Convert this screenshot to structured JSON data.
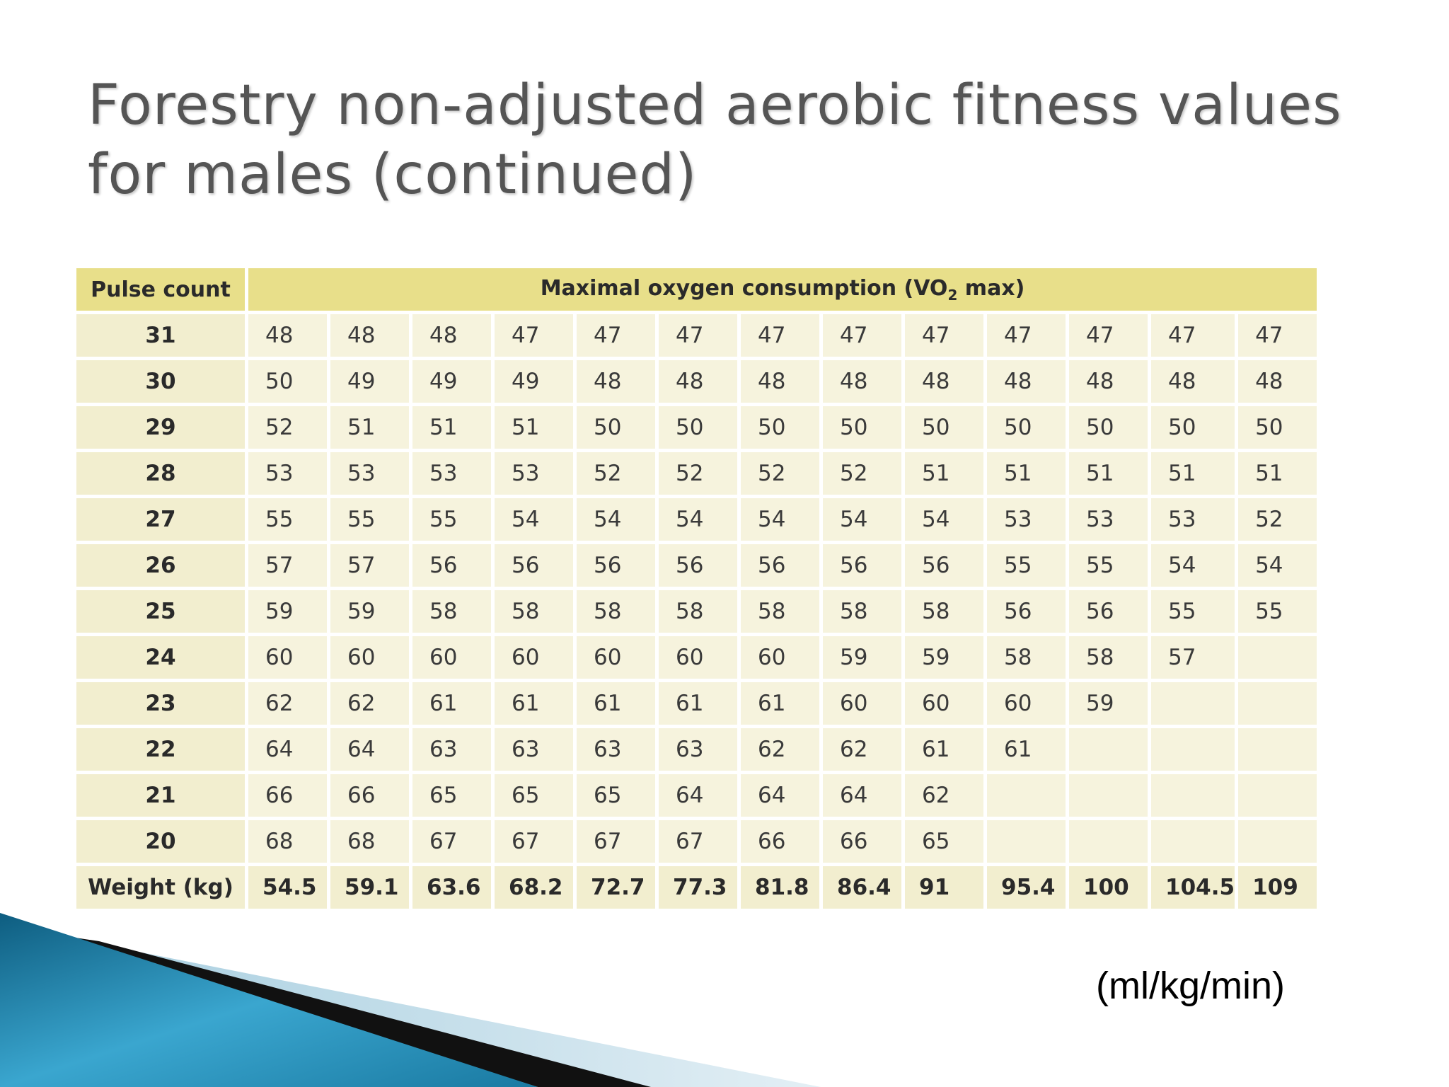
{
  "slide": {
    "title_line1": "Forestry non-adjusted aerobic fitness values",
    "title_line2": "for males (continued)",
    "unit_label": "(ml/kg/min)"
  },
  "table": {
    "header_pulse": "Pulse count",
    "header_vo2_pre": "Maximal oxygen consumption (VO",
    "header_vo2_sub": "2",
    "header_vo2_post": " max)",
    "rows": [
      {
        "pulse": "31",
        "values": [
          "48",
          "48",
          "48",
          "47",
          "47",
          "47",
          "47",
          "47",
          "47",
          "47",
          "47",
          "47",
          "47"
        ]
      },
      {
        "pulse": "30",
        "values": [
          "50",
          "49",
          "49",
          "49",
          "48",
          "48",
          "48",
          "48",
          "48",
          "48",
          "48",
          "48",
          "48"
        ]
      },
      {
        "pulse": "29",
        "values": [
          "52",
          "51",
          "51",
          "51",
          "50",
          "50",
          "50",
          "50",
          "50",
          "50",
          "50",
          "50",
          "50"
        ]
      },
      {
        "pulse": "28",
        "values": [
          "53",
          "53",
          "53",
          "53",
          "52",
          "52",
          "52",
          "52",
          "51",
          "51",
          "51",
          "51",
          "51"
        ]
      },
      {
        "pulse": "27",
        "values": [
          "55",
          "55",
          "55",
          "54",
          "54",
          "54",
          "54",
          "54",
          "54",
          "53",
          "53",
          "53",
          "52"
        ]
      },
      {
        "pulse": "26",
        "values": [
          "57",
          "57",
          "56",
          "56",
          "56",
          "56",
          "56",
          "56",
          "56",
          "55",
          "55",
          "54",
          "54"
        ]
      },
      {
        "pulse": "25",
        "values": [
          "59",
          "59",
          "58",
          "58",
          "58",
          "58",
          "58",
          "58",
          "58",
          "56",
          "56",
          "55",
          "55"
        ]
      },
      {
        "pulse": "24",
        "values": [
          "60",
          "60",
          "60",
          "60",
          "60",
          "60",
          "60",
          "59",
          "59",
          "58",
          "58",
          "57",
          ""
        ]
      },
      {
        "pulse": "23",
        "values": [
          "62",
          "62",
          "61",
          "61",
          "61",
          "61",
          "61",
          "60",
          "60",
          "60",
          "59",
          "",
          ""
        ]
      },
      {
        "pulse": "22",
        "values": [
          "64",
          "64",
          "63",
          "63",
          "63",
          "63",
          "62",
          "62",
          "61",
          "61",
          "",
          "",
          ""
        ]
      },
      {
        "pulse": "21",
        "values": [
          "66",
          "66",
          "65",
          "65",
          "65",
          "64",
          "64",
          "64",
          "62",
          "",
          "",
          "",
          ""
        ]
      },
      {
        "pulse": "20",
        "values": [
          "68",
          "68",
          "67",
          "67",
          "67",
          "67",
          "66",
          "66",
          "65",
          "",
          "",
          "",
          ""
        ]
      }
    ],
    "weight_label": "Weight (kg)",
    "weights": [
      "54.5",
      "59.1",
      "63.6",
      "68.2",
      "72.7",
      "77.3",
      "81.8",
      "86.4",
      "91",
      "95.4",
      "100",
      "104.5",
      "109"
    ]
  },
  "colors": {
    "header_fill": "#e8df8a",
    "cell_fill": "#f6f3dd",
    "title_text": "#555555",
    "decor_blue": "#1f7fa6",
    "decor_black": "#111111"
  }
}
